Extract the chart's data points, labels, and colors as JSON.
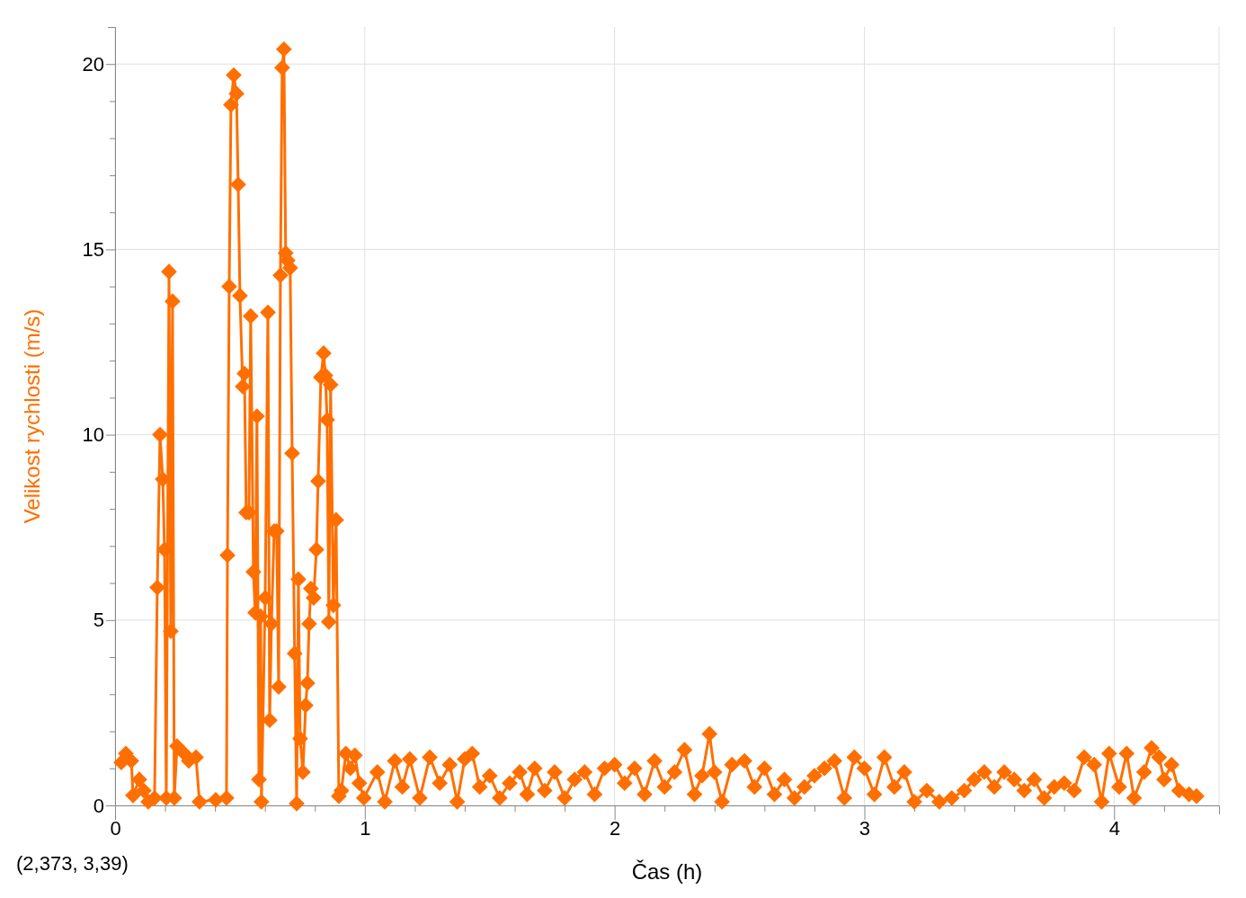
{
  "chart_data": {
    "type": "line",
    "xlabel": "Čas (h)",
    "ylabel": "Velikost rychlosti (m/s)",
    "annotations": [
      "(2,373, 3,39)"
    ],
    "xlim": [
      0,
      4.42
    ],
    "ylim": [
      0,
      21
    ],
    "xticks": [
      0,
      {
        "value": 0.2,
        "label": null
      },
      {
        "value": 0.4,
        "label": null
      },
      {
        "value": 0.6,
        "label": null
      },
      {
        "value": 0.8,
        "label": null
      },
      1,
      {
        "value": 1.2,
        "label": null
      },
      {
        "value": 1.4,
        "label": null
      },
      {
        "value": 1.6,
        "label": null
      },
      {
        "value": 1.8,
        "label": null
      },
      2,
      {
        "value": 2.2,
        "label": null
      },
      {
        "value": 2.4,
        "label": null
      },
      {
        "value": 2.6,
        "label": null
      },
      {
        "value": 2.8,
        "label": null
      },
      3,
      {
        "value": 3.2,
        "label": null
      },
      {
        "value": 3.4,
        "label": null
      },
      {
        "value": 3.6,
        "label": null
      },
      {
        "value": 3.8,
        "label": null
      },
      4,
      {
        "value": 4.2,
        "label": null
      }
    ],
    "yticks": [
      0,
      {
        "value": 1,
        "label": null
      },
      {
        "value": 2,
        "label": null
      },
      {
        "value": 3,
        "label": null
      },
      {
        "value": 4,
        "label": null
      },
      5,
      {
        "value": 6,
        "label": null
      },
      {
        "value": 7,
        "label": null
      },
      {
        "value": 8,
        "label": null
      },
      {
        "value": 9,
        "label": null
      },
      10,
      {
        "value": 11,
        "label": null
      },
      {
        "value": 12,
        "label": null
      },
      {
        "value": 13,
        "label": null
      },
      {
        "value": 14,
        "label": null
      },
      15,
      {
        "value": 16,
        "label": null
      },
      {
        "value": 17,
        "label": null
      },
      {
        "value": 18,
        "label": null
      },
      {
        "value": 19,
        "label": null
      },
      20
    ],
    "grid": true,
    "marker": "diamond",
    "line_style": "solid",
    "series": [
      {
        "color": "#ff6f00",
        "x": [
          0.025,
          0.043,
          0.065,
          0.072,
          0.097,
          0.115,
          0.133,
          0.158,
          0.169,
          0.18,
          0.191,
          0.198,
          0.205,
          0.216,
          0.223,
          0.23,
          0.237,
          0.248,
          0.277,
          0.295,
          0.324,
          0.338,
          0.403,
          0.446,
          0.45,
          0.457,
          0.464,
          0.475,
          0.486,
          0.493,
          0.5,
          0.511,
          0.518,
          0.525,
          0.536,
          0.543,
          0.554,
          0.561,
          0.568,
          0.576,
          0.583,
          0.586,
          0.601,
          0.612,
          0.619,
          0.626,
          0.637,
          0.647,
          0.655,
          0.662,
          0.669,
          0.676,
          0.683,
          0.691,
          0.701,
          0.709,
          0.719,
          0.727,
          0.734,
          0.741,
          0.752,
          0.763,
          0.77,
          0.777,
          0.784,
          0.795,
          0.806,
          0.813,
          0.824,
          0.835,
          0.842,
          0.849,
          0.856,
          0.863,
          0.874,
          0.885,
          0.896,
          0.906,
          0.924,
          0.942,
          0.96,
          0.978,
          0.996,
          1.05,
          1.08,
          1.12,
          1.15,
          1.18,
          1.22,
          1.26,
          1.3,
          1.34,
          1.37,
          1.4,
          1.43,
          1.46,
          1.5,
          1.54,
          1.58,
          1.62,
          1.65,
          1.68,
          1.72,
          1.76,
          1.8,
          1.84,
          1.88,
          1.92,
          1.96,
          2.0,
          2.04,
          2.08,
          2.12,
          2.16,
          2.2,
          2.24,
          2.28,
          2.32,
          2.35,
          2.38,
          2.4,
          2.43,
          2.47,
          2.52,
          2.56,
          2.6,
          2.64,
          2.68,
          2.72,
          2.76,
          2.8,
          2.84,
          2.88,
          2.92,
          2.96,
          3.0,
          3.04,
          3.08,
          3.12,
          3.16,
          3.2,
          3.25,
          3.3,
          3.35,
          3.4,
          3.44,
          3.48,
          3.52,
          3.56,
          3.6,
          3.64,
          3.68,
          3.72,
          3.76,
          3.8,
          3.84,
          3.88,
          3.92,
          3.95,
          3.98,
          4.02,
          4.05,
          4.08,
          4.12,
          4.15,
          4.18,
          4.2,
          4.23,
          4.26,
          4.3,
          4.33
        ],
        "values": [
          1.16,
          1.4,
          1.2,
          0.27,
          0.7,
          0.4,
          0.1,
          0.2,
          5.88,
          10.0,
          8.8,
          6.9,
          0.2,
          14.4,
          4.7,
          13.6,
          0.2,
          1.6,
          1.4,
          1.2,
          1.3,
          0.1,
          0.15,
          0.2,
          6.75,
          14.0,
          18.9,
          19.7,
          19.2,
          16.75,
          13.75,
          11.3,
          11.65,
          7.9,
          7.9,
          13.2,
          6.3,
          5.2,
          10.5,
          0.7,
          5.1,
          0.1,
          5.6,
          13.3,
          2.3,
          4.9,
          7.4,
          7.4,
          3.2,
          14.3,
          19.9,
          20.4,
          14.9,
          14.7,
          14.5,
          9.5,
          4.1,
          0.05,
          6.1,
          1.8,
          0.9,
          2.7,
          3.3,
          4.9,
          5.85,
          5.6,
          6.9,
          8.75,
          11.55,
          12.2,
          11.6,
          10.4,
          4.95,
          11.35,
          5.4,
          7.7,
          0.25,
          0.4,
          1.4,
          1.0,
          1.35,
          0.6,
          0.2,
          0.9,
          0.1,
          1.2,
          0.5,
          1.25,
          0.2,
          1.3,
          0.6,
          1.1,
          0.1,
          1.25,
          1.4,
          0.5,
          0.8,
          0.2,
          0.6,
          0.9,
          0.3,
          1.0,
          0.4,
          0.9,
          0.2,
          0.7,
          0.9,
          0.3,
          1.0,
          1.1,
          0.6,
          1.0,
          0.3,
          1.2,
          0.5,
          0.9,
          1.5,
          0.3,
          0.8,
          1.93,
          0.9,
          0.1,
          1.1,
          1.2,
          0.5,
          1.0,
          0.3,
          0.7,
          0.2,
          0.5,
          0.8,
          1.0,
          1.2,
          0.2,
          1.3,
          1.0,
          0.3,
          1.3,
          0.5,
          0.9,
          0.1,
          0.4,
          0.1,
          0.2,
          0.4,
          0.7,
          0.9,
          0.5,
          0.9,
          0.7,
          0.4,
          0.7,
          0.2,
          0.5,
          0.6,
          0.4,
          1.3,
          1.1,
          0.1,
          1.4,
          0.5,
          1.4,
          0.2,
          0.9,
          1.55,
          1.3,
          0.7,
          1.1,
          0.4,
          0.3,
          0.25
        ]
      }
    ]
  }
}
